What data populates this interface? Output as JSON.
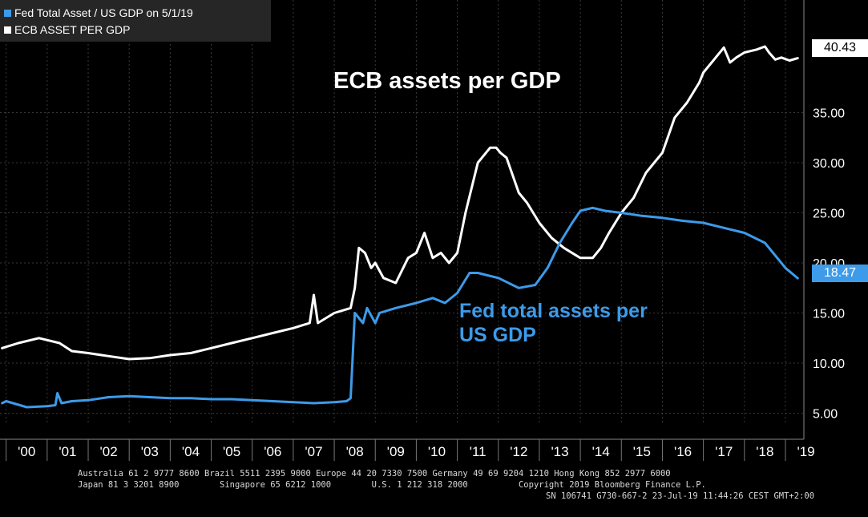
{
  "legend": {
    "fed": "Fed Total Asset / US GDP  on 5/1/19",
    "ecb": "ECB ASSET PER GDP"
  },
  "annotations": {
    "ecb": "ECB assets per GDP",
    "fed_line1": "Fed total assets per",
    "fed_line2": "US GDP"
  },
  "colors": {
    "background": "#000000",
    "grid": "#3a3a3a",
    "fed": "#3d9be9",
    "ecb": "#ffffff",
    "text": "#ffffff",
    "legend_bg": "#262626"
  },
  "footer": {
    "line1": "Australia 61 2 9777 8600 Brazil 5511 2395 9000 Europe 44 20 7330 7500 Germany 49 69 9204 1210 Hong Kong 852 2977 6000",
    "line2": "Japan 81 3 3201 8900        Singapore 65 6212 1000        U.S. 1 212 318 2000          Copyright 2019 Bloomberg Finance L.P.",
    "line3": "SN 106741 G730-667-2 23-Jul-19 11:44:26 CEST GMT+2:00"
  },
  "chart_data": {
    "type": "line",
    "title": "",
    "xlabel": "",
    "ylabel": "",
    "xlim": [
      1999.85,
      2019.45
    ],
    "ylim": [
      4.0,
      43.2
    ],
    "grid": true,
    "legend_position": "top-left",
    "x_ticks": [
      "'00",
      "'01",
      "'02",
      "'03",
      "'04",
      "'05",
      "'06",
      "'07",
      "'08",
      "'09",
      "'10",
      "'11",
      "'12",
      "'13",
      "'14",
      "'15",
      "'16",
      "'17",
      "'18",
      "'19"
    ],
    "y_ticks": [
      "5.00",
      "10.00",
      "15.00",
      "20.00",
      "25.00",
      "30.00",
      "35.00"
    ],
    "last_values": {
      "ecb": "40.43",
      "fed": "18.47"
    },
    "series": [
      {
        "name": "ECB ASSET PER GDP",
        "color": "#ffffff",
        "x": [
          1999.9,
          2000.3,
          2000.8,
          2001.3,
          2001.6,
          2002.0,
          2002.5,
          2003.0,
          2003.5,
          2004.0,
          2004.5,
          2005.0,
          2005.5,
          2006.0,
          2006.5,
          2007.0,
          2007.4,
          2007.5,
          2007.6,
          2008.0,
          2008.4,
          2008.5,
          2008.6,
          2008.75,
          2008.9,
          2009.0,
          2009.2,
          2009.5,
          2009.8,
          2010.0,
          2010.2,
          2010.4,
          2010.6,
          2010.8,
          2011.0,
          2011.2,
          2011.5,
          2011.8,
          2011.95,
          2012.05,
          2012.2,
          2012.5,
          2012.7,
          2013.0,
          2013.3,
          2013.6,
          2014.0,
          2014.3,
          2014.5,
          2014.7,
          2015.0,
          2015.3,
          2015.6,
          2016.0,
          2016.3,
          2016.6,
          2016.9,
          2017.0,
          2017.2,
          2017.5,
          2017.65,
          2017.8,
          2018.0,
          2018.3,
          2018.5,
          2018.6,
          2018.75,
          2018.9,
          2019.1,
          2019.3
        ],
        "y": [
          11.5,
          12.0,
          12.5,
          12.0,
          11.2,
          11.0,
          10.7,
          10.4,
          10.5,
          10.8,
          11.0,
          11.5,
          12.0,
          12.5,
          13.0,
          13.5,
          14.0,
          16.8,
          14.0,
          15.0,
          15.5,
          17.5,
          21.5,
          21.0,
          19.5,
          20.0,
          18.5,
          18.0,
          20.5,
          21.0,
          23.0,
          20.5,
          21.0,
          20.0,
          21.0,
          25.0,
          30.0,
          31.5,
          31.5,
          31.0,
          30.5,
          27.0,
          26.0,
          24.0,
          22.5,
          21.5,
          20.5,
          20.5,
          21.5,
          23.0,
          25.0,
          26.5,
          29.0,
          31.0,
          34.5,
          36.0,
          38.0,
          39.0,
          40.0,
          41.5,
          40.0,
          40.5,
          41.0,
          41.3,
          41.6,
          41.0,
          40.3,
          40.5,
          40.2,
          40.43
        ]
      },
      {
        "name": "Fed Total Asset / US GDP",
        "color": "#3d9be9",
        "x": [
          1999.9,
          2000.0,
          2000.5,
          2001.0,
          2001.2,
          2001.25,
          2001.35,
          2001.6,
          2002.0,
          2002.5,
          2003.0,
          2003.5,
          2004.0,
          2004.5,
          2005.0,
          2005.5,
          2006.0,
          2006.5,
          2007.0,
          2007.5,
          2008.0,
          2008.3,
          2008.4,
          2008.5,
          2008.7,
          2008.8,
          2009.0,
          2009.1,
          2009.5,
          2010.0,
          2010.4,
          2010.7,
          2011.0,
          2011.3,
          2011.5,
          2012.0,
          2012.5,
          2012.9,
          2013.2,
          2013.5,
          2013.8,
          2014.0,
          2014.3,
          2014.6,
          2015.0,
          2015.5,
          2016.0,
          2016.5,
          2017.0,
          2017.5,
          2018.0,
          2018.5,
          2019.0,
          2019.3
        ],
        "y": [
          6.0,
          6.2,
          5.6,
          5.7,
          5.8,
          7.0,
          6.0,
          6.2,
          6.3,
          6.6,
          6.7,
          6.6,
          6.5,
          6.5,
          6.4,
          6.4,
          6.3,
          6.2,
          6.1,
          6.0,
          6.1,
          6.2,
          6.5,
          15.0,
          14.0,
          15.5,
          14.0,
          15.0,
          15.5,
          16.0,
          16.5,
          16.0,
          17.0,
          19.0,
          19.0,
          18.5,
          17.5,
          17.8,
          19.5,
          22.0,
          24.0,
          25.2,
          25.5,
          25.2,
          25.0,
          24.7,
          24.5,
          24.2,
          24.0,
          23.5,
          23.0,
          22.0,
          19.5,
          18.47
        ]
      }
    ]
  }
}
